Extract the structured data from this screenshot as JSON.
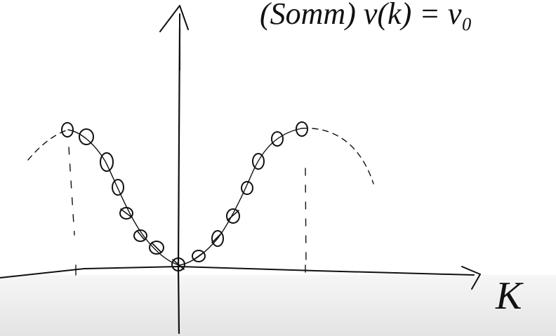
{
  "equation": "(Somm)  v(k)  =  v₀",
  "axis_label": "K"
}
